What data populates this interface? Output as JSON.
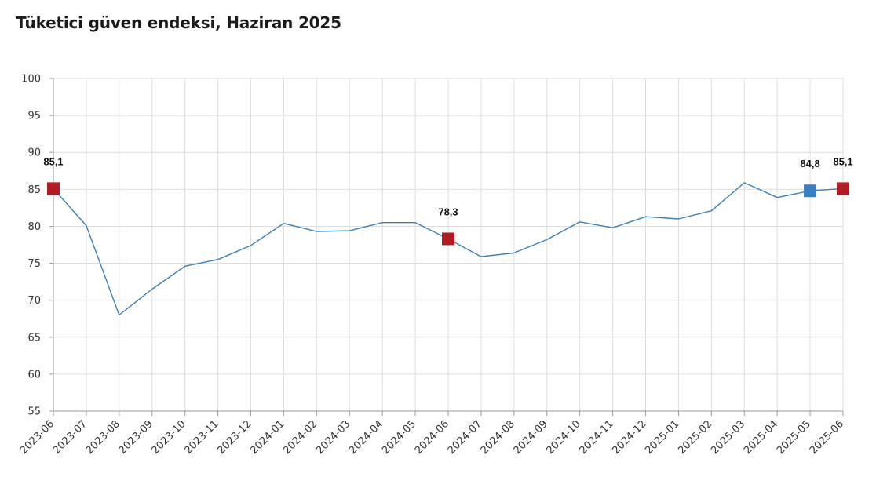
{
  "title": "Tüketici güven endeksi, Haziran 2025",
  "colors": {
    "line": "#3a7fb8",
    "highlight_red": "#b01c22",
    "highlight_blue": "#3a7fc0",
    "grid": "#dddddd",
    "axis": "#999999"
  },
  "chart_data": {
    "type": "line",
    "title": "Tüketici güven endeksi, Haziran 2025",
    "xlabel": "",
    "ylabel": "",
    "ylim": [
      55,
      100
    ],
    "yticks": [
      55,
      60,
      65,
      70,
      75,
      80,
      85,
      90,
      95,
      100
    ],
    "ytick_labels": [
      "55",
      "60",
      "65",
      "70",
      "75",
      "80",
      "85",
      "90",
      "95",
      "100"
    ],
    "grid": true,
    "categories": [
      "2023-06",
      "2023-07",
      "2023-08",
      "2023-09",
      "2023-10",
      "2023-11",
      "2023-12",
      "2024-01",
      "2024-02",
      "2024-03",
      "2024-04",
      "2024-05",
      "2024-06",
      "2024-07",
      "2024-08",
      "2024-09",
      "2024-10",
      "2024-11",
      "2024-12",
      "2025-01",
      "2025-02",
      "2025-03",
      "2025-04",
      "2025-05",
      "2025-06"
    ],
    "series": [
      {
        "values": [
          85.1,
          80.1,
          68.0,
          71.5,
          74.6,
          75.5,
          77.4,
          80.4,
          79.3,
          79.4,
          80.5,
          80.5,
          78.3,
          75.9,
          76.4,
          78.2,
          80.6,
          79.8,
          81.3,
          81.0,
          82.1,
          85.9,
          83.9,
          84.8,
          85.1
        ]
      }
    ],
    "highlights": [
      {
        "index": 0,
        "label": "85,1",
        "color": "red"
      },
      {
        "index": 12,
        "label": "78,3",
        "color": "red"
      },
      {
        "index": 23,
        "label": "84,8",
        "color": "blue"
      },
      {
        "index": 24,
        "label": "85,1",
        "color": "red"
      }
    ]
  }
}
